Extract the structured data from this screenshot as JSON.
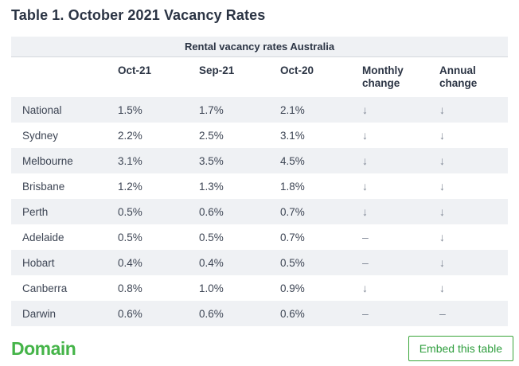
{
  "page": {
    "title": "Table 1. October 2021 Vacancy Rates"
  },
  "chart_data": {
    "type": "table",
    "title": "Rental vacancy rates Australia",
    "columns": [
      "",
      "Oct-21",
      "Sep-21",
      "Oct-20",
      "Monthly change",
      "Annual change"
    ],
    "rows": [
      [
        "National",
        "1.5%",
        "1.7%",
        "2.1%",
        "down",
        "down"
      ],
      [
        "Sydney",
        "2.2%",
        "2.5%",
        "3.1%",
        "down",
        "down"
      ],
      [
        "Melbourne",
        "3.1%",
        "3.5%",
        "4.5%",
        "down",
        "down"
      ],
      [
        "Brisbane",
        "1.2%",
        "1.3%",
        "1.8%",
        "down",
        "down"
      ],
      [
        "Perth",
        "0.5%",
        "0.6%",
        "0.7%",
        "down",
        "down"
      ],
      [
        "Adelaide",
        "0.5%",
        "0.5%",
        "0.7%",
        "steady",
        "down"
      ],
      [
        "Hobart",
        "0.4%",
        "0.4%",
        "0.5%",
        "steady",
        "down"
      ],
      [
        "Canberra",
        "0.8%",
        "1.0%",
        "0.9%",
        "down",
        "down"
      ],
      [
        "Darwin",
        "0.6%",
        "0.6%",
        "0.6%",
        "steady",
        "steady"
      ]
    ]
  },
  "glyphs": {
    "down": "↓",
    "steady": "–"
  },
  "footer": {
    "logo_text": "Domain",
    "embed_button_label": "Embed this table"
  },
  "colors": {
    "title_text": "#2b3444",
    "body_text": "#3d4554",
    "row_stripe": "#eff1f4",
    "change_glyph": "#7d8593",
    "brand_green": "#45b449",
    "button_green": "#2f9e3e"
  }
}
